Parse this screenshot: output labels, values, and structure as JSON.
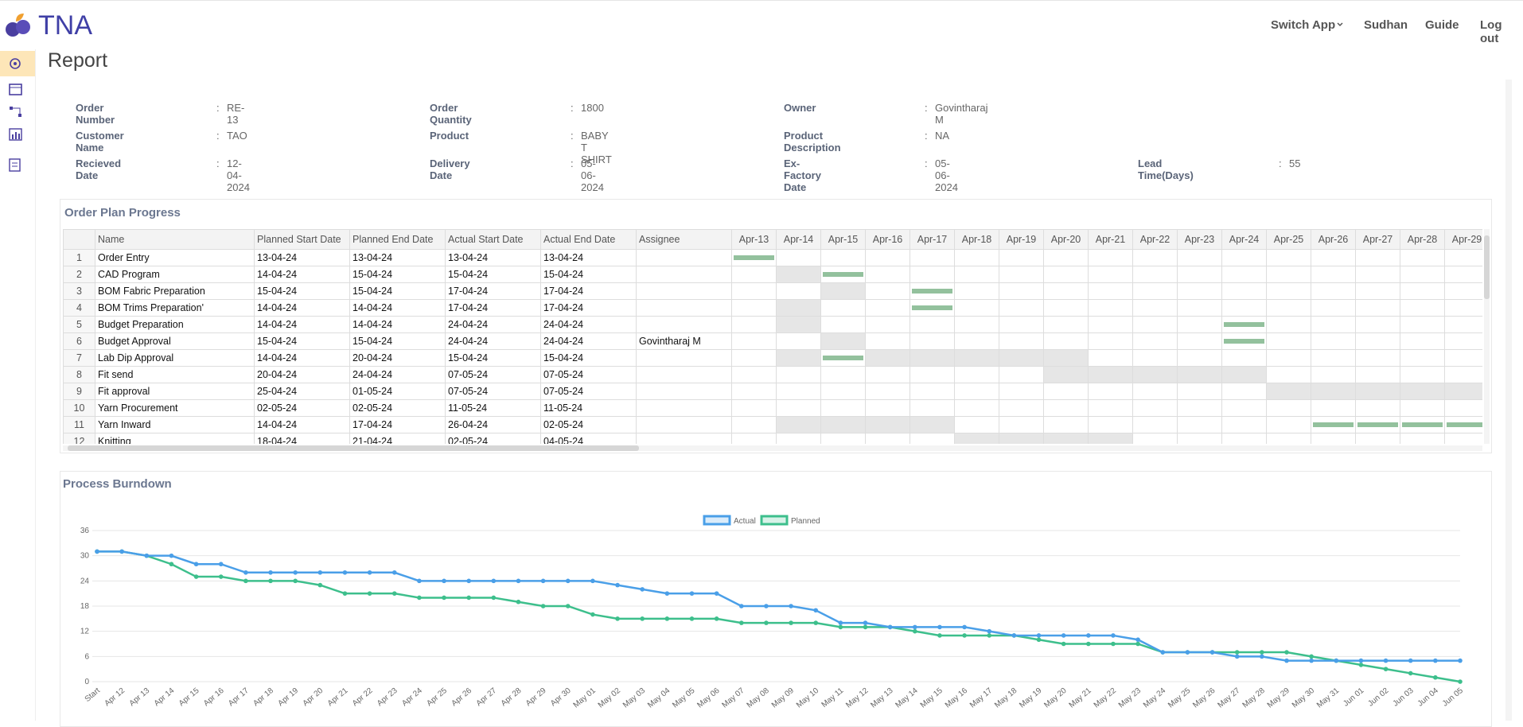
{
  "header": {
    "brand": "TNA",
    "nav": [
      "Switch App",
      "Sudhan",
      "Guide",
      "Log out"
    ]
  },
  "page_title": "Report",
  "info": {
    "separator": ":",
    "rows": [
      [
        {
          "label": "Order Number",
          "value": "RE-13"
        },
        {
          "label": "Order Quantity",
          "value": 1800
        },
        {
          "label": "Owner",
          "value": "Govintharaj M"
        }
      ],
      [
        {
          "label": "Customer Name",
          "value": "TAO"
        },
        {
          "label": "Product",
          "value": "BABY T SHIRT"
        },
        {
          "label": "Product Description",
          "value": "NA"
        }
      ],
      [
        {
          "label": "Recieved Date",
          "value": "12-04-2024"
        },
        {
          "label": "Delivery Date",
          "value": "05-06-2024"
        },
        {
          "label": "Ex-Factory Date",
          "value": "05-06-2024"
        },
        {
          "label": "Lead Time(Days)",
          "value": 55
        }
      ]
    ]
  },
  "plan": {
    "title": "Order Plan Progress",
    "columns": [
      "Name",
      "Planned Start Date",
      "Planned End Date",
      "Actual Start Date",
      "Actual End Date",
      "Assignee"
    ],
    "dates": [
      "Apr-13",
      "Apr-14",
      "Apr-15",
      "Apr-16",
      "Apr-17",
      "Apr-18",
      "Apr-19",
      "Apr-20",
      "Apr-21",
      "Apr-22",
      "Apr-23",
      "Apr-24",
      "Apr-25",
      "Apr-26",
      "Apr-27",
      "Apr-28",
      "Apr-29"
    ],
    "rows": [
      [
        1,
        "Order Entry",
        "13-04-24",
        "13-04-24",
        "13-04-24",
        "13-04-24",
        null
      ],
      [
        2,
        "CAD Program",
        "14-04-24",
        "15-04-24",
        "15-04-24",
        "15-04-24",
        null
      ],
      [
        3,
        "BOM Fabric Preparation",
        "15-04-24",
        "15-04-24",
        "17-04-24",
        "17-04-24",
        null
      ],
      [
        4,
        "BOM Trims Preparation'",
        "14-04-24",
        "14-04-24",
        "17-04-24",
        "17-04-24",
        null
      ],
      [
        5,
        "Budget Preparation",
        "14-04-24",
        "14-04-24",
        "24-04-24",
        "24-04-24",
        null
      ],
      [
        6,
        "Budget Approval",
        "15-04-24",
        "15-04-24",
        "24-04-24",
        "24-04-24",
        "Govintharaj M"
      ],
      [
        7,
        "Lab Dip Approval",
        "14-04-24",
        "20-04-24",
        "15-04-24",
        "15-04-24",
        null
      ],
      [
        8,
        "Fit send",
        "20-04-24",
        "24-04-24",
        "07-05-24",
        "07-05-24",
        null
      ],
      [
        9,
        "Fit approval",
        "25-04-24",
        "01-05-24",
        "07-05-24",
        "07-05-24",
        null
      ],
      [
        10,
        "Yarn Procurement",
        "02-05-24",
        "02-05-24",
        "11-05-24",
        "11-05-24",
        null
      ],
      [
        11,
        "Yarn Inward",
        "14-04-24",
        "17-04-24",
        "26-04-24",
        "02-05-24",
        null
      ],
      [
        12,
        "Knitting",
        "18-04-24",
        "21-04-24",
        "02-05-24",
        "04-05-24",
        null
      ]
    ]
  },
  "chart_data": {
    "type": "line",
    "title": "Process Burndown",
    "categories": [
      "Start",
      "Apr 12",
      "Apr 13",
      "Apr 14",
      "Apr 15",
      "Apr 16",
      "Apr 17",
      "Apr 18",
      "Apr 19",
      "Apr 20",
      "Apr 21",
      "Apr 22",
      "Apr 23",
      "Apr 24",
      "Apr 25",
      "Apr 26",
      "Apr 27",
      "Apr 28",
      "Apr 29",
      "Apr 30",
      "May 01",
      "May 02",
      "May 03",
      "May 04",
      "May 05",
      "May 06",
      "May 07",
      "May 08",
      "May 09",
      "May 10",
      "May 11",
      "May 12",
      "May 13",
      "May 14",
      "May 15",
      "May 16",
      "May 17",
      "May 18",
      "May 19",
      "May 20",
      "May 21",
      "May 22",
      "May 23",
      "May 24",
      "May 25",
      "May 26",
      "May 27",
      "May 28",
      "May 29",
      "May 30",
      "May 31",
      "Jun 01",
      "Jun 02",
      "Jun 03",
      "Jun 04",
      "Jun 05"
    ],
    "series": [
      {
        "name": "Actual",
        "color": "#4a9fe8",
        "values": [
          31,
          31,
          30,
          30,
          28,
          28,
          26,
          26,
          26,
          26,
          26,
          26,
          26,
          24,
          24,
          24,
          24,
          24,
          24,
          24,
          24,
          23,
          22,
          21,
          21,
          21,
          18,
          18,
          18,
          17,
          14,
          14,
          13,
          13,
          13,
          13,
          12,
          11,
          11,
          11,
          11,
          11,
          10,
          7,
          7,
          7,
          6,
          6,
          5,
          5,
          5,
          5,
          5,
          5,
          5,
          5
        ]
      },
      {
        "name": "Planned",
        "color": "#3dbf8c",
        "values": [
          31,
          31,
          30,
          28,
          25,
          25,
          24,
          24,
          24,
          23,
          21,
          21,
          21,
          20,
          20,
          20,
          20,
          19,
          18,
          18,
          16,
          15,
          15,
          15,
          15,
          15,
          14,
          14,
          14,
          14,
          13,
          13,
          13,
          12,
          11,
          11,
          11,
          11,
          10,
          9,
          9,
          9,
          9,
          7,
          7,
          7,
          7,
          7,
          7,
          6,
          5,
          4,
          3,
          2,
          1,
          0
        ]
      }
    ],
    "ylim": [
      0,
      36
    ],
    "yticks": [
      0,
      6,
      12,
      18,
      24,
      30,
      36
    ],
    "grid": true,
    "legend": "top"
  }
}
